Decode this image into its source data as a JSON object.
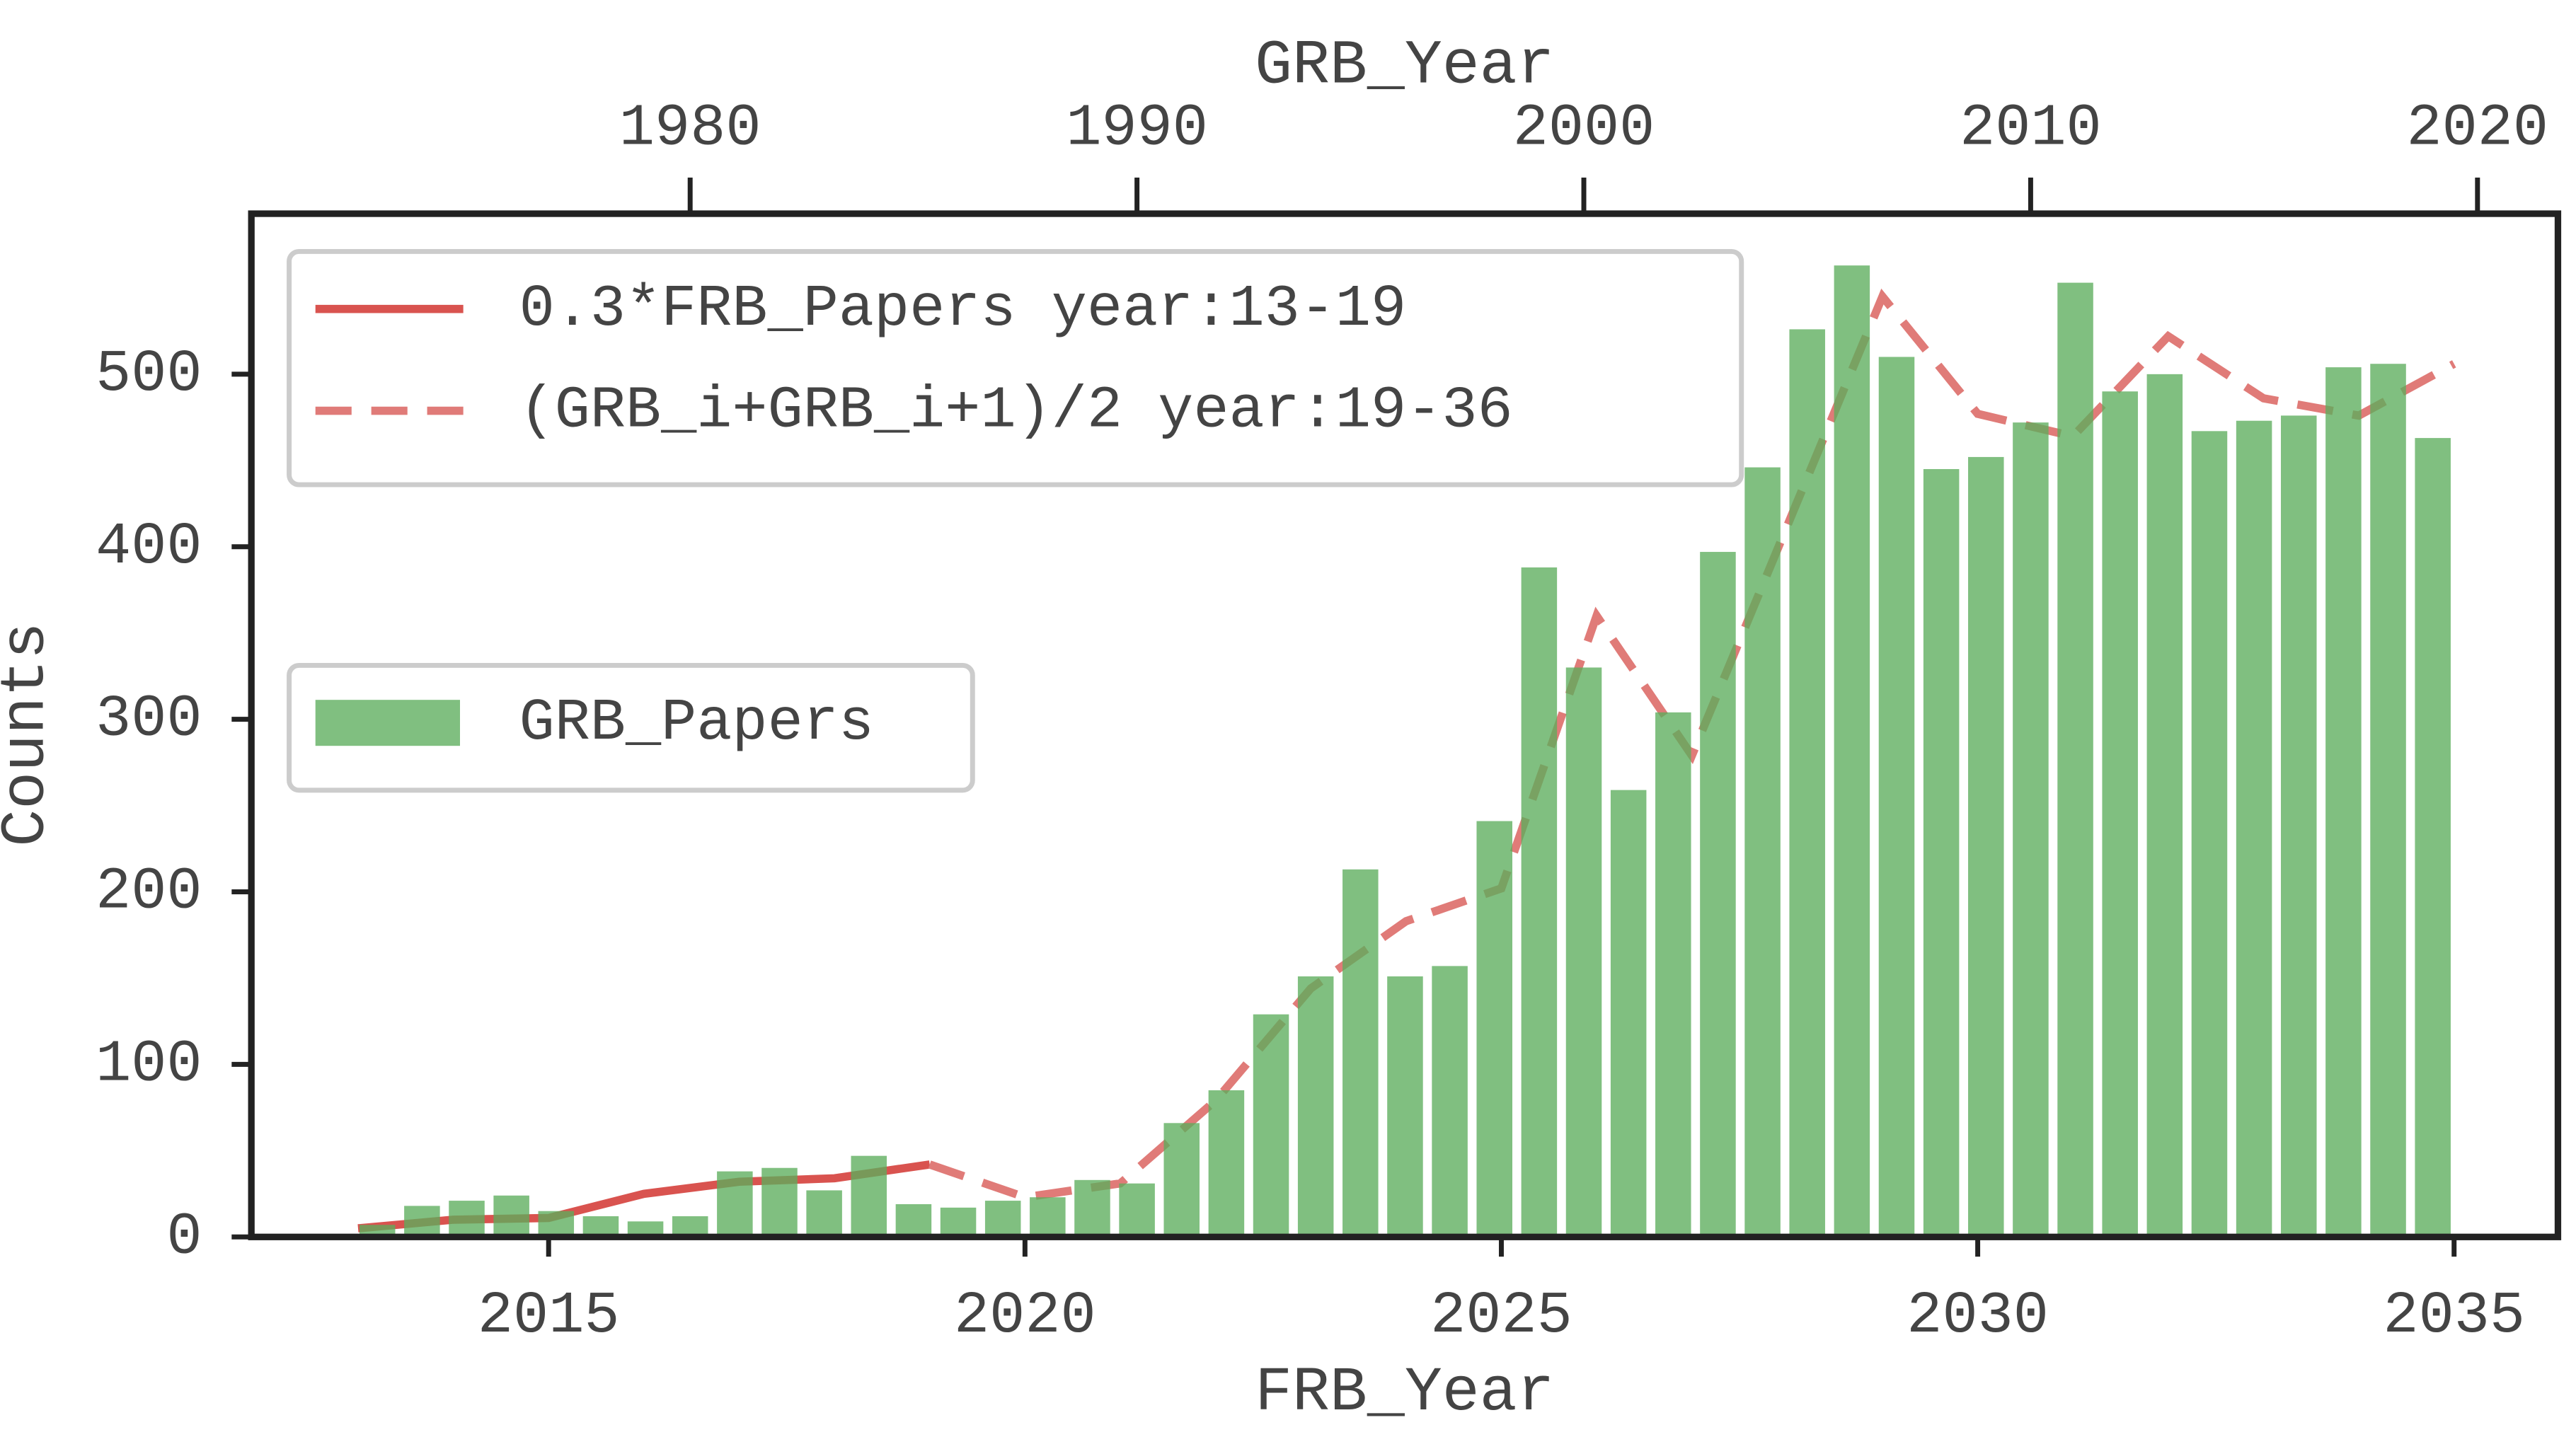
{
  "chart_data": {
    "type": "bar",
    "xlabel": "FRB_Year",
    "x2label": "GRB_Year",
    "ylabel": "Counts",
    "xlim": [
      2011.88,
      2036.09
    ],
    "xticks": [
      2015,
      2020,
      2025,
      2030,
      2035
    ],
    "x2lim": [
      1970.18,
      2021.8
    ],
    "x2ticks": [
      1980,
      1990,
      2000,
      2010,
      2020
    ],
    "ylim": [
      0,
      593
    ],
    "yticks": [
      0,
      100,
      200,
      300,
      400,
      500
    ],
    "series": [
      {
        "name": "0.3*FRB_Papers year:13-19",
        "type": "line",
        "color": "#d9534f",
        "dash": false,
        "x": [
          2013,
          2014,
          2015,
          2016,
          2017,
          2018,
          2019
        ],
        "values": [
          5,
          10,
          11,
          25,
          32,
          34,
          42
        ]
      },
      {
        "name": "(GRB_i+GRB_i+1)/2 year:19-36",
        "type": "line",
        "color": "#e07b78",
        "dash": true,
        "x": [
          2019,
          2020,
          2021,
          2022,
          2023,
          2024,
          2025,
          2026,
          2027,
          2028,
          2029,
          2030,
          2031,
          2032,
          2033,
          2034,
          2035
        ],
        "values": [
          42,
          23,
          31,
          79,
          144,
          183,
          202,
          360,
          279,
          412,
          545,
          477,
          464,
          522,
          486,
          476,
          506
        ]
      },
      {
        "name": "GRB_Papers",
        "type": "bar",
        "axis": "x2",
        "color": "#5cad5c",
        "x": [
          1973,
          1974,
          1975,
          1976,
          1977,
          1978,
          1979,
          1980,
          1981,
          1982,
          1983,
          1984,
          1985,
          1986,
          1987,
          1988,
          1989,
          1990,
          1991,
          1992,
          1993,
          1994,
          1995,
          1996,
          1997,
          1998,
          1999,
          2000,
          2001,
          2002,
          2003,
          2004,
          2005,
          2006,
          2007,
          2008,
          2009,
          2010,
          2011,
          2012,
          2013,
          2014,
          2015,
          2016,
          2017,
          2018,
          2019
        ],
        "values": [
          7,
          18,
          21,
          24,
          15,
          12,
          9,
          12,
          38,
          40,
          27,
          47,
          19,
          17,
          21,
          23,
          33,
          31,
          66,
          85,
          129,
          151,
          213,
          151,
          157,
          241,
          388,
          330,
          259,
          304,
          397,
          446,
          526,
          563,
          510,
          445,
          452,
          472,
          553,
          490,
          500,
          467,
          473,
          476,
          504,
          506,
          463
        ]
      }
    ]
  }
}
